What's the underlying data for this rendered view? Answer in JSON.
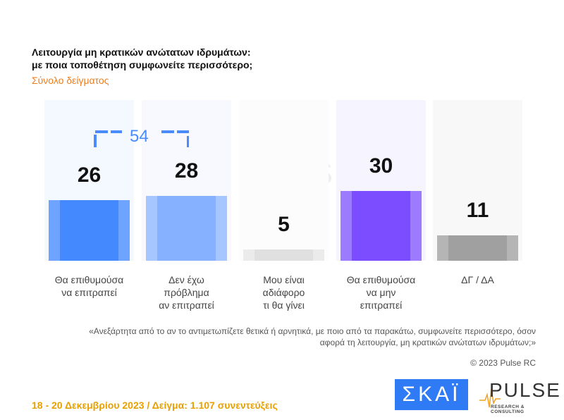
{
  "header": {
    "title_line1": "Λειτουργία μη κρατικών ανώτατων ιδρυμάτων:",
    "title_line2": "με ποια τοποθέτηση συμφωνείτε περισσότερο;",
    "subtitle": "Σύνολο δείγματος"
  },
  "chart_data": {
    "type": "bar",
    "categories": [
      "Θα επιθυμούσα\nνα επιτραπεί",
      "Δεν έχω\nπρόβλημα\nαν επιτραπεί",
      "Μου είναι\nαδιάφορο\nτι θα γίνει",
      "Θα επιθυμούσα\nνα μην\nεπιτραπεί",
      "ΔΓ / ΔΑ"
    ],
    "values": [
      26,
      28,
      5,
      30,
      11
    ],
    "colors": [
      "#4589ff",
      "#85b1ff",
      "#e0e0e0",
      "#7c4dff",
      "#a0a0a0"
    ],
    "edge_colors": [
      "#6ea3ff",
      "#a6c6ff",
      "#ebebeb",
      "#9d7bff",
      "#b5b5b5"
    ],
    "bg_colors": [
      "#f4f8ff",
      "#f7f9ff",
      "#fcfcfd",
      "#f6f4ff",
      "#f8f8f8"
    ],
    "bracket": {
      "label": "54",
      "spans": [
        0,
        1
      ]
    },
    "ylim": [
      0,
      60
    ]
  },
  "question": "«Ανεξάρτητα από το αν το αντιμετωπίζετε θετικά ή αρνητικά, με ποιο από τα παρακάτω, συμφωνείτε περισσότερο, όσον αφορά τη λειτουργία, μη κρατικών ανώτατων ιδρυμάτων;»",
  "copyright": "© 2023 Pulse RC",
  "footer": "18 - 20  Δεκεμβρίου  2023  /  Δείγμα:  1.107 συνεντεύξεις",
  "logos": {
    "skai": "ΣΚΑΪ",
    "pulse": "PULSE",
    "pulse_sub": "RESEARCH & CONSULTING"
  }
}
